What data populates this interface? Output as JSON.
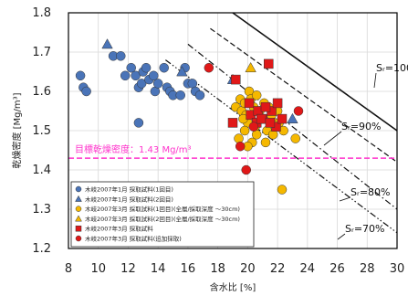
{
  "chart_data": {
    "type": "scatter",
    "xlabel": "含水比 [%]",
    "ylabel": "乾燥密度 [Mg/m³]",
    "xlim": [
      8,
      30
    ],
    "ylim": [
      1.2,
      1.8
    ],
    "xticks": [
      "8",
      "10",
      "12",
      "14",
      "16",
      "18",
      "20",
      "22",
      "24",
      "26",
      "28",
      "30"
    ],
    "yticks": [
      "1.2",
      "1.3",
      "1.4",
      "1.5",
      "1.6",
      "1.7",
      "1.8"
    ],
    "grid": true,
    "legend_position": "bottom-left",
    "target_line": {
      "y": 1.43,
      "label": "目標乾燥密度：1.43 Mg/m³",
      "color": "#ff33cc"
    },
    "saturation_curves": [
      {
        "label": "Sᵣ=100%",
        "style": "solid",
        "points": [
          [
            19.0,
            1.8
          ],
          [
            30.0,
            1.5
          ]
        ]
      },
      {
        "label": "Sᵣ=90%",
        "style": "dashed",
        "points": [
          [
            17.5,
            1.76
          ],
          [
            30.0,
            1.42
          ]
        ]
      },
      {
        "label": "Sᵣ=80%",
        "style": "dashdot",
        "points": [
          [
            16.0,
            1.72
          ],
          [
            30.0,
            1.3
          ]
        ]
      },
      {
        "label": "Sᵣ=70%",
        "style": "dashdotdot",
        "points": [
          [
            14.5,
            1.68
          ],
          [
            30.0,
            1.24
          ]
        ]
      }
    ],
    "series": [
      {
        "name": "木岐2007年1月 採取試料(1回目)",
        "marker": "circle",
        "color": "#4a74b8",
        "points": [
          [
            8.8,
            1.64
          ],
          [
            9.0,
            1.61
          ],
          [
            9.2,
            1.6
          ],
          [
            11.0,
            1.69
          ],
          [
            11.5,
            1.69
          ],
          [
            11.8,
            1.64
          ],
          [
            12.2,
            1.66
          ],
          [
            12.5,
            1.64
          ],
          [
            12.7,
            1.61
          ],
          [
            12.9,
            1.62
          ],
          [
            13.0,
            1.65
          ],
          [
            13.2,
            1.66
          ],
          [
            13.4,
            1.63
          ],
          [
            13.7,
            1.64
          ],
          [
            13.8,
            1.6
          ],
          [
            14.0,
            1.62
          ],
          [
            14.4,
            1.66
          ],
          [
            14.6,
            1.61
          ],
          [
            14.8,
            1.6
          ],
          [
            15.0,
            1.59
          ],
          [
            15.5,
            1.59
          ],
          [
            15.8,
            1.66
          ],
          [
            16.0,
            1.62
          ],
          [
            16.3,
            1.62
          ],
          [
            16.5,
            1.6
          ],
          [
            16.8,
            1.59
          ],
          [
            12.7,
            1.52
          ]
        ]
      },
      {
        "name": "木岐2007年1月 採取試料(2回目)",
        "marker": "triangle",
        "color": "#4a74b8",
        "points": [
          [
            10.6,
            1.72
          ],
          [
            15.6,
            1.65
          ],
          [
            19.0,
            1.63
          ],
          [
            23.0,
            1.53
          ]
        ]
      },
      {
        "name": "木岐2007年3月 採取試料(1回目)(全層/採取深度 ～30cm)",
        "marker": "circle",
        "color": "#f5b800",
        "points": [
          [
            19.2,
            1.56
          ],
          [
            19.5,
            1.58
          ],
          [
            19.6,
            1.55
          ],
          [
            19.8,
            1.57
          ],
          [
            19.9,
            1.54
          ],
          [
            20.0,
            1.52
          ],
          [
            20.1,
            1.6
          ],
          [
            20.2,
            1.58
          ],
          [
            20.4,
            1.56
          ],
          [
            20.5,
            1.51
          ],
          [
            20.6,
            1.59
          ],
          [
            20.8,
            1.55
          ],
          [
            21.0,
            1.53
          ],
          [
            21.1,
            1.57
          ],
          [
            21.3,
            1.5
          ],
          [
            21.4,
            1.56
          ],
          [
            21.6,
            1.54
          ],
          [
            21.8,
            1.52
          ],
          [
            22.0,
            1.55
          ],
          [
            22.1,
            1.52
          ],
          [
            19.4,
            1.48
          ],
          [
            19.8,
            1.5
          ],
          [
            20.3,
            1.47
          ],
          [
            20.6,
            1.49
          ],
          [
            21.2,
            1.47
          ],
          [
            21.7,
            1.49
          ],
          [
            22.4,
            1.5
          ],
          [
            23.2,
            1.48
          ],
          [
            20.0,
            1.46
          ],
          [
            19.7,
            1.53
          ],
          [
            22.3,
            1.35
          ]
        ]
      },
      {
        "name": "木岐2007年3月 採取試料(2回目)(全層/採取深度 ～30cm)",
        "marker": "triangle",
        "color": "#f5b800",
        "points": [
          [
            20.2,
            1.66
          ]
        ]
      },
      {
        "name": "木岐2007年3月 採取試料",
        "marker": "square",
        "color": "#e01818",
        "points": [
          [
            19.2,
            1.63
          ],
          [
            21.4,
            1.67
          ],
          [
            19.0,
            1.52
          ],
          [
            20.2,
            1.54
          ],
          [
            20.6,
            1.52
          ],
          [
            21.0,
            1.53
          ],
          [
            20.1,
            1.57
          ],
          [
            21.6,
            1.55
          ],
          [
            21.9,
            1.51
          ],
          [
            22.3,
            1.53
          ],
          [
            20.7,
            1.55
          ],
          [
            21.2,
            1.56
          ],
          [
            20.9,
            1.53
          ],
          [
            21.5,
            1.52
          ],
          [
            22.0,
            1.57
          ]
        ]
      },
      {
        "name": "木岐2007年3月 採取試料(追加採取)",
        "marker": "circle",
        "color": "#e01818",
        "points": [
          [
            17.4,
            1.66
          ],
          [
            19.5,
            1.46
          ],
          [
            19.9,
            1.4
          ],
          [
            23.4,
            1.55
          ],
          [
            20.4,
            1.51
          ]
        ]
      }
    ]
  }
}
